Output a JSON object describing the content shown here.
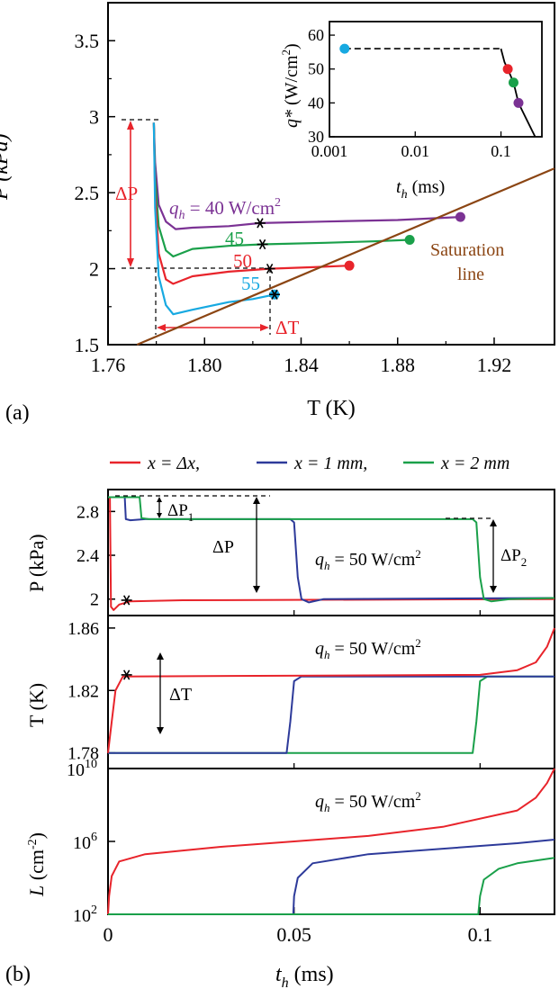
{
  "panel_labels": {
    "a": "(a)",
    "b": "(b)"
  },
  "chart_data": [
    {
      "id": "a_main",
      "type": "line",
      "xlabel": "T (K)",
      "ylabel": "P (kPa)",
      "xlim": [
        1.76,
        1.945
      ],
      "ylim": [
        1.5,
        3.75
      ],
      "xticks": [
        "1.76",
        "1.80",
        "1.84",
        "1.88",
        "1.92"
      ],
      "yticks": [
        "1.5",
        "2",
        "2.5",
        "3",
        "3.5"
      ],
      "series": [
        {
          "name": "40 W/cm²",
          "color": "#7b3294",
          "points": [
            [
              1.779,
              2.96
            ],
            [
              1.7795,
              2.7
            ],
            [
              1.781,
              2.42
            ],
            [
              1.784,
              2.31
            ],
            [
              1.788,
              2.26
            ],
            [
              1.795,
              2.27
            ],
            [
              1.81,
              2.28
            ],
            [
              1.823,
              2.3
            ],
            [
              1.85,
              2.31
            ],
            [
              1.88,
              2.32
            ],
            [
              1.906,
              2.34
            ]
          ]
        },
        {
          "name": "45 W/cm²",
          "color": "#1aa04a",
          "points": [
            [
              1.779,
              2.96
            ],
            [
              1.7795,
              2.6
            ],
            [
              1.781,
              2.28
            ],
            [
              1.784,
              2.12
            ],
            [
              1.787,
              2.08
            ],
            [
              1.795,
              2.13
            ],
            [
              1.81,
              2.15
            ],
            [
              1.824,
              2.16
            ],
            [
              1.85,
              2.17
            ],
            [
              1.87,
              2.18
            ],
            [
              1.885,
              2.19
            ]
          ]
        },
        {
          "name": "50 W/cm²",
          "color": "#e8242b",
          "points": [
            [
              1.779,
              2.96
            ],
            [
              1.7795,
              2.5
            ],
            [
              1.781,
              2.1
            ],
            [
              1.784,
              1.93
            ],
            [
              1.787,
              1.9
            ],
            [
              1.795,
              1.95
            ],
            [
              1.81,
              1.98
            ],
            [
              1.827,
              2.0
            ],
            [
              1.845,
              2.01
            ],
            [
              1.86,
              2.02
            ]
          ]
        },
        {
          "name": "55 W/cm²",
          "color": "#17a9e1",
          "points": [
            [
              1.779,
              2.96
            ],
            [
              1.7795,
              2.4
            ],
            [
              1.781,
              1.95
            ],
            [
              1.784,
              1.76
            ],
            [
              1.787,
              1.7
            ],
            [
              1.795,
              1.73
            ],
            [
              1.81,
              1.78
            ],
            [
              1.82,
              1.8
            ],
            [
              1.829,
              1.83
            ]
          ]
        },
        {
          "name": "Saturation line",
          "color": "#8b4513",
          "points": [
            [
              1.772,
              1.5
            ],
            [
              1.945,
              2.66
            ]
          ]
        }
      ],
      "markers": [
        {
          "x": 1.906,
          "y": 2.34,
          "color": "#7b3294"
        },
        {
          "x": 1.885,
          "y": 2.19,
          "color": "#1aa04a"
        },
        {
          "x": 1.86,
          "y": 2.02,
          "color": "#e8242b"
        },
        {
          "x": 1.829,
          "y": 1.83,
          "color": "#17a9e1"
        }
      ],
      "stars": [
        {
          "x": 1.823,
          "y": 2.3
        },
        {
          "x": 1.824,
          "y": 2.16
        },
        {
          "x": 1.827,
          "y": 2.0
        },
        {
          "x": 1.829,
          "y": 1.83
        }
      ],
      "annotations": {
        "delta_p": "ΔP",
        "delta_t": "ΔT",
        "qh_prefix": "q",
        "qh_sub": "h",
        "qh_value": " = 40 W/cm",
        "qh_sup": "2",
        "label_45": "45",
        "label_50": "50",
        "label_55": "55",
        "saturation_1": "Saturation",
        "saturation_2": "line"
      }
    },
    {
      "id": "a_inset",
      "type": "line",
      "xscale": "log",
      "xlabel_main": "t",
      "xlabel_sub": "h",
      "xlabel_unit": " (ms)",
      "ylabel_main": "q*",
      "ylabel_unit": " (W/cm",
      "ylabel_sup": "2",
      "ylabel_end": ")",
      "xlim": [
        0.001,
        0.3
      ],
      "ylim": [
        30,
        64
      ],
      "xticks": [
        {
          "v": 0.001,
          "label": "0.001"
        },
        {
          "v": 0.01,
          "label": "0.01"
        },
        {
          "v": 0.1,
          "label": "0.1"
        }
      ],
      "yticks": [
        {
          "v": 30,
          "label": "30"
        },
        {
          "v": 40,
          "label": "40"
        },
        {
          "v": 50,
          "label": "50"
        },
        {
          "v": 60,
          "label": "60"
        }
      ],
      "dashed": [
        [
          0.0015,
          56
        ],
        [
          0.1,
          56
        ]
      ],
      "curve": [
        [
          0.1,
          56
        ],
        [
          0.11,
          52
        ],
        [
          0.12,
          50
        ],
        [
          0.14,
          46
        ],
        [
          0.16,
          40
        ],
        [
          0.2,
          35
        ],
        [
          0.25,
          30
        ]
      ],
      "points": [
        {
          "x": 0.0015,
          "y": 56,
          "color": "#17a9e1"
        },
        {
          "x": 0.12,
          "y": 50,
          "color": "#e8242b"
        },
        {
          "x": 0.14,
          "y": 46,
          "color": "#1aa04a"
        },
        {
          "x": 0.16,
          "y": 40,
          "color": "#7b3294"
        }
      ]
    },
    {
      "id": "b_legend",
      "entries": [
        {
          "label": "x = Δx,",
          "color": "#e8242b"
        },
        {
          "label": "x = 1 mm,",
          "color": "#2d3a9a"
        },
        {
          "label": "x = 2 mm",
          "color": "#1aa04a"
        }
      ]
    },
    {
      "id": "b_pressure",
      "type": "line",
      "ylabel": "P (kPa)",
      "xlim": [
        0,
        0.12
      ],
      "ylim": [
        1.85,
        3.0
      ],
      "yticks": [
        "2",
        "2.4",
        "2.8"
      ],
      "qh_prefix": "q",
      "qh_sub": "h",
      "qh_value": " = 50 W/cm",
      "qh_sup": "2",
      "delta_p": "ΔP",
      "delta_p1": "ΔP",
      "delta_p1_sub": "1",
      "delta_p2": "ΔP",
      "delta_p2_sub": "2",
      "series": [
        {
          "name": "x = Δx",
          "color": "#e8242b",
          "points": [
            [
              0,
              2.93
            ],
            [
              0.0005,
              2.93
            ],
            [
              0.0008,
              1.93
            ],
            [
              0.0015,
              1.9
            ],
            [
              0.003,
              1.95
            ],
            [
              0.006,
              1.98
            ],
            [
              0.02,
              1.99
            ],
            [
              0.12,
              2.0
            ]
          ]
        },
        {
          "name": "x = 1 mm",
          "color": "#2d3a9a",
          "points": [
            [
              0,
              2.93
            ],
            [
              0.0045,
              2.93
            ],
            [
              0.0048,
              2.73
            ],
            [
              0.006,
              2.72
            ],
            [
              0.01,
              2.73
            ],
            [
              0.049,
              2.73
            ],
            [
              0.05,
              2.7
            ],
            [
              0.051,
              2.2
            ],
            [
              0.052,
              2.0
            ],
            [
              0.054,
              1.97
            ],
            [
              0.058,
              2.0
            ],
            [
              0.12,
              2.01
            ]
          ]
        },
        {
          "name": "x = 2 mm",
          "color": "#1aa04a",
          "points": [
            [
              0,
              2.93
            ],
            [
              0.0085,
              2.93
            ],
            [
              0.009,
              2.74
            ],
            [
              0.011,
              2.73
            ],
            [
              0.015,
              2.73
            ],
            [
              0.098,
              2.73
            ],
            [
              0.099,
              2.7
            ],
            [
              0.1,
              2.2
            ],
            [
              0.101,
              2.0
            ],
            [
              0.103,
              1.98
            ],
            [
              0.108,
              2.0
            ],
            [
              0.12,
              2.01
            ]
          ]
        }
      ],
      "star": {
        "x": 0.005,
        "y": 1.99
      }
    },
    {
      "id": "b_temperature",
      "type": "line",
      "ylabel": "T (K)",
      "xlim": [
        0,
        0.12
      ],
      "ylim": [
        1.77,
        1.868
      ],
      "yticks": [
        "1.78",
        "1.82",
        "1.86"
      ],
      "qh_prefix": "q",
      "qh_sub": "h",
      "qh_value": " = 50 W/cm",
      "qh_sup": "2",
      "delta_t": "ΔT",
      "series": [
        {
          "name": "x = 2 mm",
          "color": "#1aa04a",
          "points": [
            [
              0,
              1.78
            ],
            [
              0.098,
              1.78
            ],
            [
              0.099,
              1.8
            ],
            [
              0.1,
              1.826
            ],
            [
              0.102,
              1.829
            ],
            [
              0.12,
              1.829
            ]
          ]
        },
        {
          "name": "x = 1 mm",
          "color": "#2d3a9a",
          "points": [
            [
              0,
              1.78
            ],
            [
              0.048,
              1.78
            ],
            [
              0.049,
              1.8
            ],
            [
              0.05,
              1.826
            ],
            [
              0.052,
              1.829
            ],
            [
              0.12,
              1.829
            ]
          ]
        },
        {
          "name": "x = Δx",
          "color": "#e8242b",
          "points": [
            [
              0,
              1.78
            ],
            [
              0.001,
              1.8
            ],
            [
              0.002,
              1.82
            ],
            [
              0.004,
              1.829
            ],
            [
              0.1,
              1.83
            ],
            [
              0.11,
              1.833
            ],
            [
              0.115,
              1.838
            ],
            [
              0.118,
              1.848
            ],
            [
              0.12,
              1.86
            ]
          ]
        }
      ],
      "star": {
        "x": 0.005,
        "y": 1.83
      }
    },
    {
      "id": "b_vortex",
      "type": "line",
      "yscale": "log",
      "xlabel_main": "t",
      "xlabel_sub": "h",
      "xlabel_unit": " (ms)",
      "ylabel_main": "L",
      "ylabel_unit": " (cm",
      "ylabel_sup": "-2",
      "ylabel_end": ")",
      "xlim": [
        0,
        0.12
      ],
      "ylim_log10": [
        2,
        10
      ],
      "xticks": [
        {
          "v": 0,
          "label": "0"
        },
        {
          "v": 0.05,
          "label": "0.05"
        },
        {
          "v": 0.1,
          "label": "0.1"
        }
      ],
      "yticks": [
        {
          "e": 2,
          "base": "10",
          "exp": "2"
        },
        {
          "e": 6,
          "base": "10",
          "exp": "6"
        },
        {
          "e": 10,
          "base": "10",
          "exp": "10"
        }
      ],
      "qh_prefix": "q",
      "qh_sub": "h",
      "qh_value": " = 50 W/cm",
      "qh_sup": "2",
      "series": [
        {
          "name": "x = Δx",
          "color": "#e8242b",
          "log_points": [
            [
              0,
              2
            ],
            [
              0.0003,
              3
            ],
            [
              0.001,
              4.1
            ],
            [
              0.003,
              4.9
            ],
            [
              0.01,
              5.3
            ],
            [
              0.03,
              5.7
            ],
            [
              0.05,
              6.0
            ],
            [
              0.07,
              6.3
            ],
            [
              0.09,
              6.8
            ],
            [
              0.11,
              7.7
            ],
            [
              0.115,
              8.4
            ],
            [
              0.118,
              9.2
            ],
            [
              0.12,
              10
            ]
          ]
        },
        {
          "name": "x = 1 mm",
          "color": "#2d3a9a",
          "log_points": [
            [
              0,
              2
            ],
            [
              0.0498,
              2
            ],
            [
              0.05,
              3
            ],
            [
              0.051,
              4.0
            ],
            [
              0.055,
              4.8
            ],
            [
              0.07,
              5.3
            ],
            [
              0.09,
              5.6
            ],
            [
              0.11,
              5.9
            ],
            [
              0.12,
              6.1
            ]
          ]
        },
        {
          "name": "x = 2 mm",
          "color": "#1aa04a",
          "log_points": [
            [
              0,
              2
            ],
            [
              0.0995,
              2
            ],
            [
              0.1,
              3
            ],
            [
              0.101,
              3.9
            ],
            [
              0.105,
              4.5
            ],
            [
              0.11,
              4.8
            ],
            [
              0.12,
              5.1
            ]
          ]
        }
      ]
    }
  ]
}
